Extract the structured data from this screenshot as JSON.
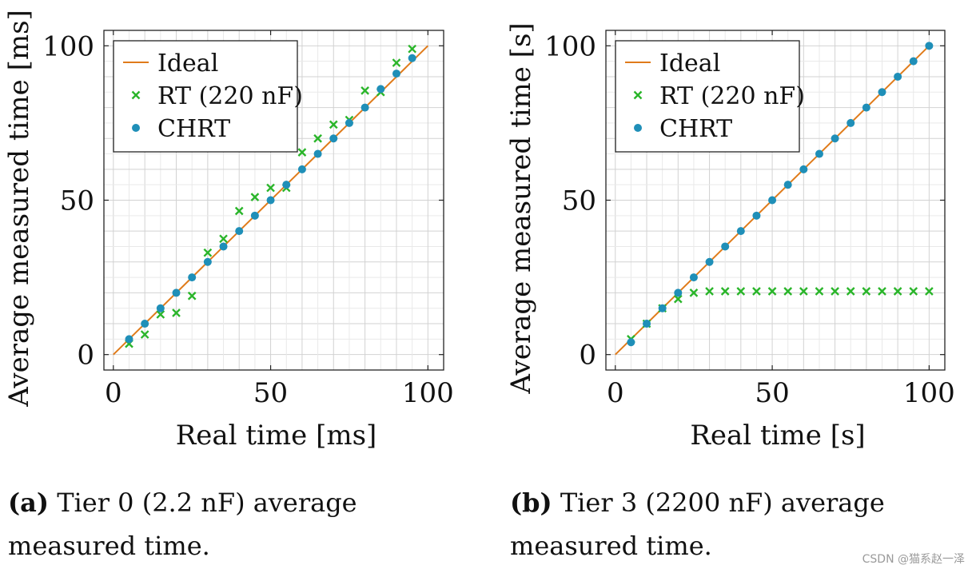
{
  "colors": {
    "ideal": "#e07b1a",
    "rt": "#2ab52a",
    "chrt": "#1f8fb8",
    "grid": "#dcdcdc",
    "axis": "#222222"
  },
  "captions": [
    {
      "label": "(a)",
      "text": " Tier 0 (2.2 nF) average measured time."
    },
    {
      "label": "(b)",
      "text": " Tier 3 (2200 nF) average measured time."
    }
  ],
  "watermark": "CSDN @猫系赵一泽",
  "chart_data": [
    {
      "type": "scatter",
      "title": "",
      "xlabel": "Real time [ms]",
      "ylabel": "Average measured time [ms]",
      "xlim": [
        -3,
        105
      ],
      "ylim": [
        -5,
        105
      ],
      "xticks": [
        0,
        50,
        100
      ],
      "yticks": [
        0,
        50,
        100
      ],
      "grid": true,
      "legend": "top-left",
      "series": [
        {
          "name": "Ideal",
          "kind": "line",
          "x": [
            0,
            100
          ],
          "y": [
            0,
            100
          ]
        },
        {
          "name": "RT (220 nF)",
          "kind": "cross",
          "x": [
            5,
            10,
            15,
            20,
            25,
            30,
            35,
            40,
            45,
            50,
            55,
            60,
            65,
            70,
            75,
            80,
            85,
            90,
            95
          ],
          "y": [
            3.5,
            6.5,
            13,
            13.5,
            19,
            33,
            37.5,
            46.5,
            51,
            54,
            54,
            65.5,
            70,
            74.5,
            76,
            85.5,
            85,
            94.5,
            99
          ]
        },
        {
          "name": "CHRT",
          "kind": "dot",
          "x": [
            5,
            10,
            15,
            20,
            25,
            30,
            35,
            40,
            45,
            50,
            55,
            60,
            65,
            70,
            75,
            80,
            85,
            90,
            95
          ],
          "y": [
            5,
            10,
            15,
            20,
            25,
            30,
            35,
            40,
            45,
            50,
            55,
            60,
            65,
            70,
            75,
            80,
            86,
            91,
            96
          ]
        }
      ]
    },
    {
      "type": "scatter",
      "title": "",
      "xlabel": "Real time [s]",
      "ylabel": "Average measured time [s]",
      "xlim": [
        -3,
        105
      ],
      "ylim": [
        -5,
        105
      ],
      "xticks": [
        0,
        50,
        100
      ],
      "yticks": [
        0,
        50,
        100
      ],
      "grid": true,
      "legend": "top-left",
      "series": [
        {
          "name": "Ideal",
          "kind": "line",
          "x": [
            0,
            100
          ],
          "y": [
            0,
            100
          ]
        },
        {
          "name": "RT (220 nF)",
          "kind": "cross",
          "x": [
            5,
            10,
            15,
            20,
            25,
            30,
            35,
            40,
            45,
            50,
            55,
            60,
            65,
            70,
            75,
            80,
            85,
            90,
            95,
            100
          ],
          "y": [
            5,
            10,
            15,
            18,
            20,
            20.5,
            20.5,
            20.5,
            20.5,
            20.5,
            20.5,
            20.5,
            20.5,
            20.5,
            20.5,
            20.5,
            20.5,
            20.5,
            20.5,
            20.5
          ]
        },
        {
          "name": "CHRT",
          "kind": "dot",
          "x": [
            5,
            10,
            15,
            20,
            25,
            30,
            35,
            40,
            45,
            50,
            55,
            60,
            65,
            70,
            75,
            80,
            85,
            90,
            95,
            100
          ],
          "y": [
            4,
            10,
            15,
            20,
            25,
            30,
            35,
            40,
            45,
            50,
            55,
            60,
            65,
            70,
            75,
            80,
            85,
            90,
            95,
            100
          ]
        }
      ]
    }
  ]
}
